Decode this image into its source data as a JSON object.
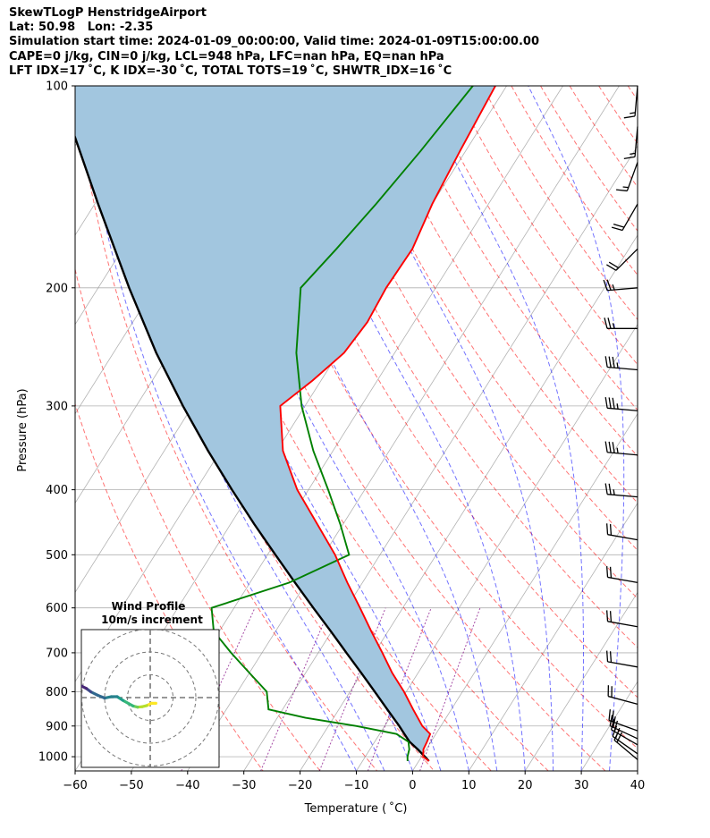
{
  "header": {
    "title": "SkewTLogP HenstridgeAirport",
    "location": "Lat: 50.98   Lon: -2.35",
    "times": "Simulation start time: 2024-01-09_00:00:00, Valid time: 2024-01-09T15:00:00.00",
    "indices1": "CAPE=0 j/kg, CIN=0 j/kg, LCL=948 hPa, LFC=nan hPa, EQ=nan hPa",
    "indices2": "LFT IDX=17 ˚C, K IDX=-30 ˚C, TOTAL TOTS=19 ˚C, SHWTR_IDX=16 ˚C"
  },
  "axes": {
    "xlabel": "Temperature ( ˚C)",
    "ylabel": "Pressure (hPa)",
    "x_ticks": [
      "−60",
      "−50",
      "−40",
      "−30",
      "−20",
      "−10",
      "0",
      "10",
      "20",
      "30",
      "40"
    ],
    "y_ticks": [
      "100",
      "200",
      "300",
      "400",
      "500",
      "600",
      "700",
      "800",
      "900",
      "1000"
    ]
  },
  "hodograph": {
    "title": "Wind Profile",
    "subtitle": "10m/s increment"
  },
  "colors": {
    "temperature": "#ff0000",
    "dewpoint": "#008000",
    "parcel": "#000000",
    "cape_fill": "#a2c6df",
    "dry_adiabat": "#ff0000",
    "moist_adiabat": "#0000ff",
    "mixing_ratio": "#800080",
    "isotherm": "#999999"
  },
  "chart_data": {
    "type": "line",
    "title": "SkewTLogP HenstridgeAirport",
    "xlabel": "Temperature ( ˚C)",
    "ylabel": "Pressure (hPa)",
    "xlim": [
      -60,
      40
    ],
    "ylim": [
      1050,
      100
    ],
    "y_scale": "log",
    "grid": true,
    "series": [
      {
        "key": "temperature",
        "pressure": [
          1015,
          1000,
          975,
          950,
          925,
          900,
          850,
          800,
          750,
          700,
          650,
          600,
          550,
          500,
          450,
          400,
          350,
          300,
          275,
          250,
          225,
          200,
          175,
          150,
          125,
          100
        ],
        "values": [
          1.8,
          0.3,
          -0.5,
          -0.7,
          -1.0,
          -3.3,
          -6.8,
          -10.4,
          -14.6,
          -18.6,
          -23.0,
          -27.6,
          -32.7,
          -38.0,
          -44.6,
          -52.0,
          -58.9,
          -64.4,
          -61.5,
          -59.0,
          -58.3,
          -58.8,
          -58.5,
          -60.0,
          -61.0,
          -62.0
        ]
      },
      {
        "key": "dewpoint",
        "pressure": [
          1015,
          1000,
          975,
          950,
          925,
          900,
          875,
          850,
          800,
          750,
          700,
          650,
          600,
          550,
          500,
          450,
          400,
          350,
          300,
          250,
          200,
          175,
          150,
          125,
          100
        ],
        "values": [
          -2.0,
          -2.5,
          -3.0,
          -4.0,
          -7.0,
          -15.0,
          -25.0,
          -32.5,
          -34.8,
          -40.0,
          -45.5,
          -51.0,
          -54.0,
          -43.0,
          -35.5,
          -40.5,
          -46.5,
          -53.5,
          -60.6,
          -67.5,
          -74.0,
          -72.0,
          -70.0,
          -68.0,
          -66.0
        ]
      },
      {
        "key": "parcel",
        "pressure": [
          1015,
          1000,
          975,
          950,
          925,
          900,
          850,
          800,
          750,
          700,
          650,
          600,
          550,
          500,
          450,
          400,
          350,
          300,
          250,
          200,
          150,
          100
        ],
        "values": [
          1.8,
          0.6,
          -1.5,
          -3.8,
          -5.6,
          -7.4,
          -11.4,
          -15.6,
          -20.1,
          -25.0,
          -30.2,
          -35.9,
          -42.0,
          -48.6,
          -55.8,
          -63.6,
          -72.2,
          -81.7,
          -92.4,
          -104.5,
          -119.4,
          -139.9
        ]
      }
    ],
    "cape": "0 j/kg",
    "cin": "0 j/kg",
    "lcl": "948 hPa",
    "lfc": "nan hPa",
    "eq": "nan hPa",
    "wind_barbs": {
      "pressure": [
        100,
        115,
        130,
        150,
        175,
        200,
        230,
        265,
        305,
        355,
        410,
        475,
        550,
        640,
        735,
        835,
        915,
        940,
        960,
        990,
        1010
      ],
      "speed_kt": [
        15,
        15,
        15,
        20,
        20,
        25,
        25,
        35,
        35,
        35,
        25,
        20,
        20,
        20,
        20,
        20,
        20,
        20,
        20,
        20,
        20
      ],
      "direction_deg": [
        185,
        185,
        200,
        210,
        225,
        265,
        270,
        275,
        275,
        275,
        275,
        280,
        280,
        280,
        280,
        285,
        290,
        295,
        300,
        305,
        310
      ]
    },
    "hodograph": {
      "title": "Wind Profile",
      "subtitle": "10m/s increment",
      "u_ms": [
        2.5,
        0.5,
        -1.5,
        -3.5,
        -5.5,
        -7.5,
        -9.5,
        -12,
        -14.5,
        -17,
        -20,
        -23,
        -26,
        -28,
        -30,
        -32,
        -34
      ],
      "v_ms": [
        -2.5,
        -2.5,
        -3.5,
        -4,
        -4.2,
        -3.7,
        -2.6,
        -1.2,
        0.4,
        0.4,
        -0.2,
        1,
        2.5,
        4,
        5,
        5.5,
        6
      ]
    }
  }
}
